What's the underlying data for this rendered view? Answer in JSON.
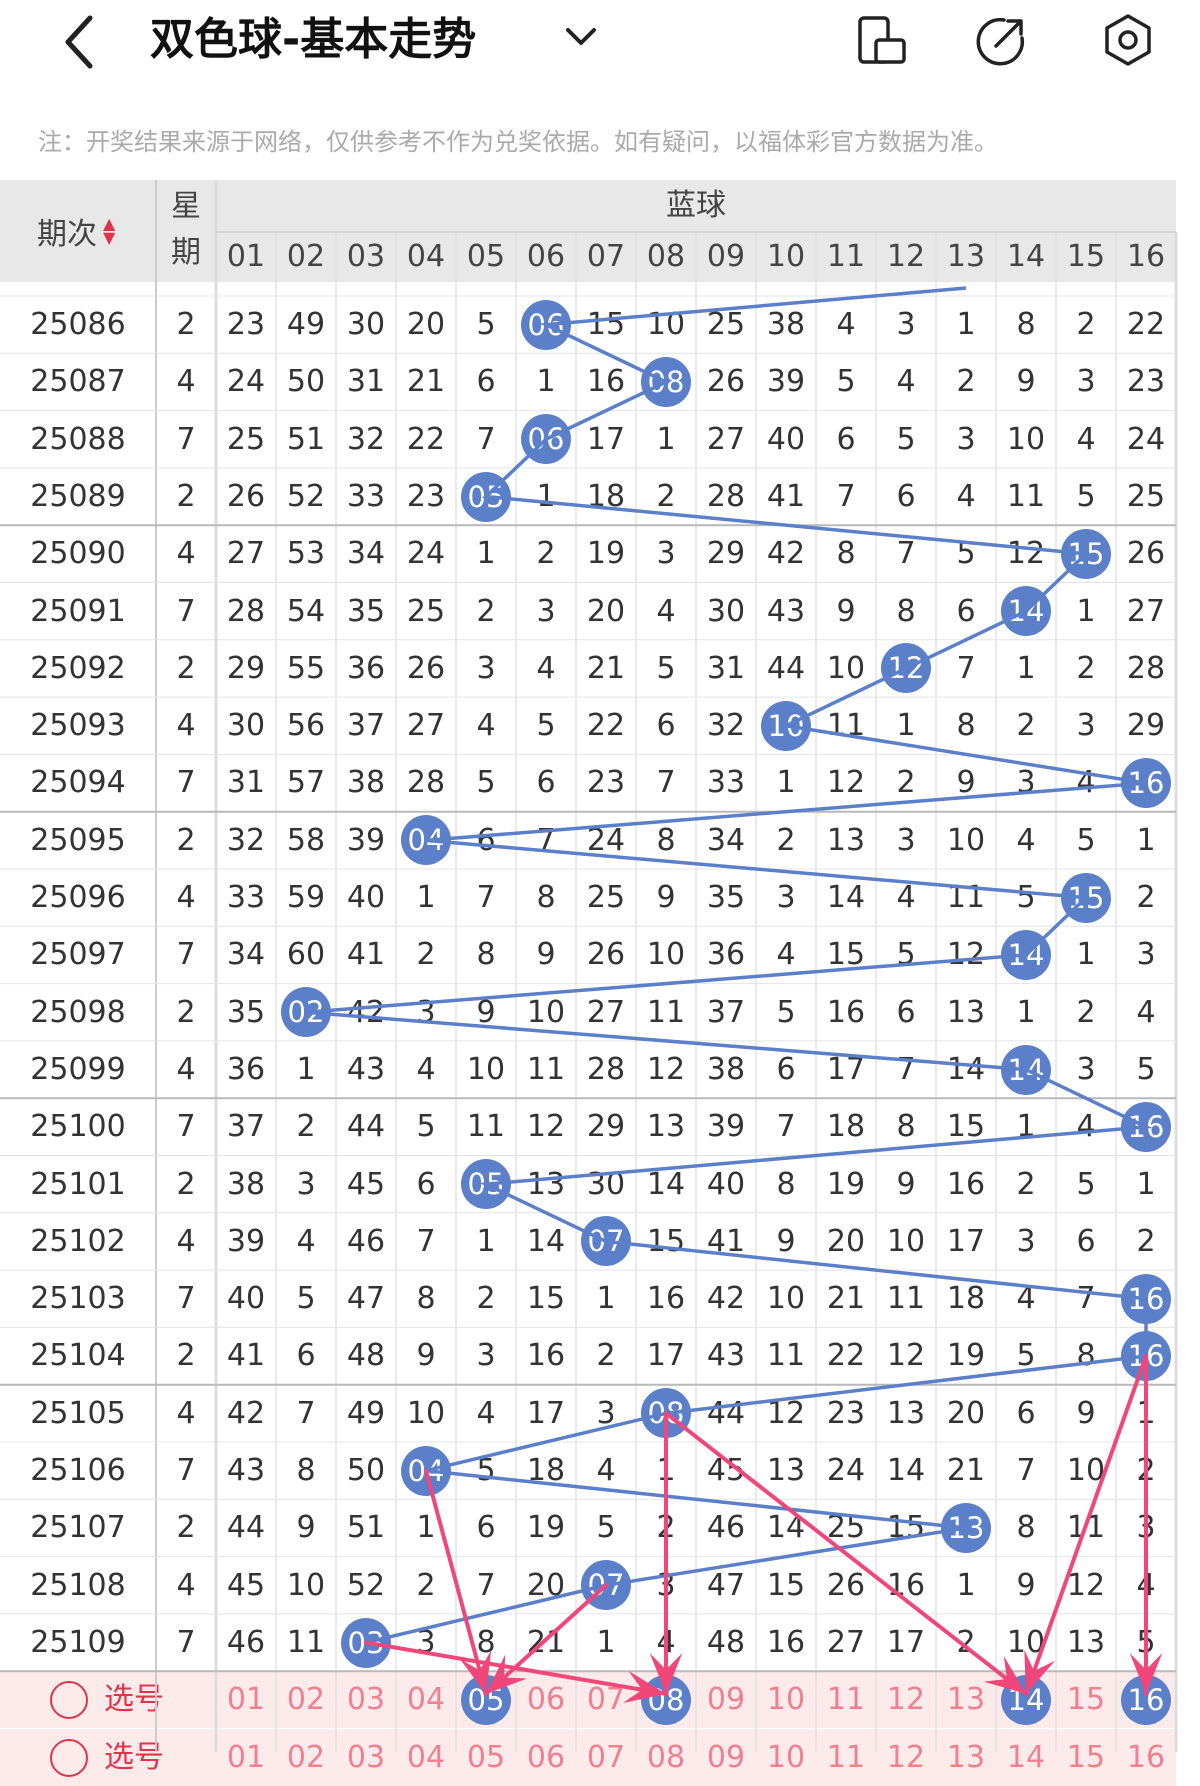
{
  "topbar": {
    "back_icon": "chevron-left-icon",
    "title": "双色球-基本走势",
    "dropdown_icon": "chevron-down-icon",
    "icons": [
      "phone-rotate-icon",
      "share-icon",
      "settings-icon"
    ]
  },
  "note": "注：开奖结果来源于网络，仅供参考不作为兑奖依据。如有疑问，以福体彩官方数据为准。",
  "table": {
    "issue_header": "期次",
    "week_header": "星\n期",
    "week_header_1": "星",
    "week_header_2": "期",
    "blue_header": "蓝球",
    "columns": [
      "01",
      "02",
      "03",
      "04",
      "05",
      "06",
      "07",
      "08",
      "09",
      "10",
      "11",
      "12",
      "13",
      "14",
      "15",
      "16"
    ],
    "rows": [
      {
        "issue": "25086",
        "week": "2",
        "cells": [
          "23",
          "49",
          "30",
          "20",
          "5",
          "06",
          "15",
          "10",
          "25",
          "38",
          "4",
          "3",
          "1",
          "8",
          "2",
          "22"
        ],
        "hit": 6
      },
      {
        "issue": "25087",
        "week": "4",
        "cells": [
          "24",
          "50",
          "31",
          "21",
          "6",
          "1",
          "16",
          "08",
          "26",
          "39",
          "5",
          "4",
          "2",
          "9",
          "3",
          "23"
        ],
        "hit": 8
      },
      {
        "issue": "25088",
        "week": "7",
        "cells": [
          "25",
          "51",
          "32",
          "22",
          "7",
          "06",
          "17",
          "1",
          "27",
          "40",
          "6",
          "5",
          "3",
          "10",
          "4",
          "24"
        ],
        "hit": 6
      },
      {
        "issue": "25089",
        "week": "2",
        "cells": [
          "26",
          "52",
          "33",
          "23",
          "05",
          "1",
          "18",
          "2",
          "28",
          "41",
          "7",
          "6",
          "4",
          "11",
          "5",
          "25"
        ],
        "hit": 5
      },
      {
        "issue": "25090",
        "week": "4",
        "cells": [
          "27",
          "53",
          "34",
          "24",
          "1",
          "2",
          "19",
          "3",
          "29",
          "42",
          "8",
          "7",
          "5",
          "12",
          "15",
          "26"
        ],
        "hit": 15
      },
      {
        "issue": "25091",
        "week": "7",
        "cells": [
          "28",
          "54",
          "35",
          "25",
          "2",
          "3",
          "20",
          "4",
          "30",
          "43",
          "9",
          "8",
          "6",
          "14",
          "1",
          "27"
        ],
        "hit": 14
      },
      {
        "issue": "25092",
        "week": "2",
        "cells": [
          "29",
          "55",
          "36",
          "26",
          "3",
          "4",
          "21",
          "5",
          "31",
          "44",
          "10",
          "12",
          "7",
          "1",
          "2",
          "28"
        ],
        "hit": 12
      },
      {
        "issue": "25093",
        "week": "4",
        "cells": [
          "30",
          "56",
          "37",
          "27",
          "4",
          "5",
          "22",
          "6",
          "32",
          "10",
          "11",
          "1",
          "8",
          "2",
          "3",
          "29"
        ],
        "hit": 10
      },
      {
        "issue": "25094",
        "week": "7",
        "cells": [
          "31",
          "57",
          "38",
          "28",
          "5",
          "6",
          "23",
          "7",
          "33",
          "1",
          "12",
          "2",
          "9",
          "3",
          "4",
          "16"
        ],
        "hit": 16
      },
      {
        "issue": "25095",
        "week": "2",
        "cells": [
          "32",
          "58",
          "39",
          "04",
          "6",
          "7",
          "24",
          "8",
          "34",
          "2",
          "13",
          "3",
          "10",
          "4",
          "5",
          "1"
        ],
        "hit": 4
      },
      {
        "issue": "25096",
        "week": "4",
        "cells": [
          "33",
          "59",
          "40",
          "1",
          "7",
          "8",
          "25",
          "9",
          "35",
          "3",
          "14",
          "4",
          "11",
          "5",
          "15",
          "2"
        ],
        "hit": 15
      },
      {
        "issue": "25097",
        "week": "7",
        "cells": [
          "34",
          "60",
          "41",
          "2",
          "8",
          "9",
          "26",
          "10",
          "36",
          "4",
          "15",
          "5",
          "12",
          "14",
          "1",
          "3"
        ],
        "hit": 14
      },
      {
        "issue": "25098",
        "week": "2",
        "cells": [
          "35",
          "02",
          "42",
          "3",
          "9",
          "10",
          "27",
          "11",
          "37",
          "5",
          "16",
          "6",
          "13",
          "1",
          "2",
          "4"
        ],
        "hit": 2
      },
      {
        "issue": "25099",
        "week": "4",
        "cells": [
          "36",
          "1",
          "43",
          "4",
          "10",
          "11",
          "28",
          "12",
          "38",
          "6",
          "17",
          "7",
          "14",
          "14",
          "3",
          "5"
        ],
        "hit": 14
      },
      {
        "issue": "25100",
        "week": "7",
        "cells": [
          "37",
          "2",
          "44",
          "5",
          "11",
          "12",
          "29",
          "13",
          "39",
          "7",
          "18",
          "8",
          "15",
          "1",
          "4",
          "16"
        ],
        "hit": 16
      },
      {
        "issue": "25101",
        "week": "2",
        "cells": [
          "38",
          "3",
          "45",
          "6",
          "05",
          "13",
          "30",
          "14",
          "40",
          "8",
          "19",
          "9",
          "16",
          "2",
          "5",
          "1"
        ],
        "hit": 5
      },
      {
        "issue": "25102",
        "week": "4",
        "cells": [
          "39",
          "4",
          "46",
          "7",
          "1",
          "14",
          "07",
          "15",
          "41",
          "9",
          "20",
          "10",
          "17",
          "3",
          "6",
          "2"
        ],
        "hit": 7
      },
      {
        "issue": "25103",
        "week": "7",
        "cells": [
          "40",
          "5",
          "47",
          "8",
          "2",
          "15",
          "1",
          "16",
          "42",
          "10",
          "21",
          "11",
          "18",
          "4",
          "7",
          "16"
        ],
        "hit": 16
      },
      {
        "issue": "25104",
        "week": "2",
        "cells": [
          "41",
          "6",
          "48",
          "9",
          "3",
          "16",
          "2",
          "17",
          "43",
          "11",
          "22",
          "12",
          "19",
          "5",
          "8",
          "16"
        ],
        "hit": 16
      },
      {
        "issue": "25105",
        "week": "4",
        "cells": [
          "42",
          "7",
          "49",
          "10",
          "4",
          "17",
          "3",
          "08",
          "44",
          "12",
          "23",
          "13",
          "20",
          "6",
          "9",
          "1"
        ],
        "hit": 8
      },
      {
        "issue": "25106",
        "week": "7",
        "cells": [
          "43",
          "8",
          "50",
          "04",
          "5",
          "18",
          "4",
          "1",
          "45",
          "13",
          "24",
          "14",
          "21",
          "7",
          "10",
          "2"
        ],
        "hit": 4
      },
      {
        "issue": "25107",
        "week": "2",
        "cells": [
          "44",
          "9",
          "51",
          "1",
          "6",
          "19",
          "5",
          "2",
          "46",
          "14",
          "25",
          "15",
          "13",
          "8",
          "11",
          "3"
        ],
        "hit": 13
      },
      {
        "issue": "25108",
        "week": "4",
        "cells": [
          "45",
          "10",
          "52",
          "2",
          "7",
          "20",
          "07",
          "3",
          "47",
          "15",
          "26",
          "16",
          "1",
          "9",
          "12",
          "4"
        ],
        "hit": 7
      },
      {
        "issue": "25109",
        "week": "7",
        "cells": [
          "46",
          "11",
          "03",
          "3",
          "8",
          "21",
          "1",
          "4",
          "48",
          "16",
          "27",
          "17",
          "2",
          "10",
          "13",
          "5"
        ],
        "hit": 3
      }
    ]
  },
  "pick": {
    "label": "选号",
    "label2": "选号",
    "numbers": [
      "01",
      "02",
      "03",
      "04",
      "05",
      "06",
      "07",
      "08",
      "09",
      "10",
      "11",
      "12",
      "13",
      "14",
      "15",
      "16"
    ],
    "selected": [
      "05",
      "08",
      "14",
      "16"
    ]
  },
  "colors": {
    "ball": "#5b7fc9",
    "line": "#5b7fc9",
    "arrow": "#f0467a",
    "pick_bg": "#fdeaea",
    "accent": "#e0344a"
  }
}
